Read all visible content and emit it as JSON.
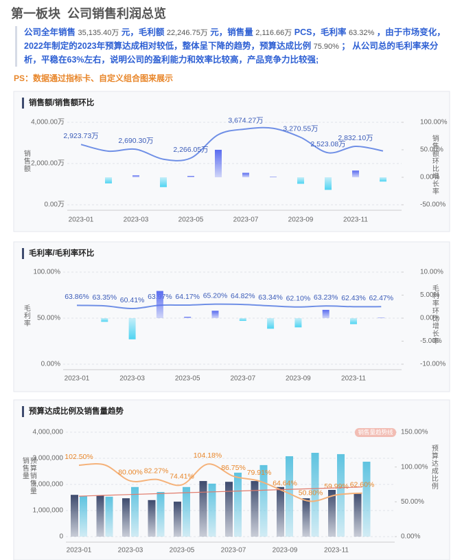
{
  "header": {
    "title": "第一板块  公司销售利润总览"
  },
  "summary": [
    "公司全年销售 ",
    "35,135.40万",
    " 元，毛利额 ",
    "22,246.75万",
    " 元，销售量 ",
    "2,116.66万",
    " PCS，毛利率 ",
    "63.32%",
    " ，由于市场变化，2022年制定的2023年预算达成相对较低，整体呈下降的趋势，预算达成比例 ",
    "75.90%",
    " ； 从公司总的毛利率来分析，平稳在63%左右，说明公司的盈利能力和效率比较高，产品竞争力比较强;"
  ],
  "ps": "PS：数据通过指标卡、自定义组合图来展示",
  "chart_data": [
    {
      "type": "combo",
      "title": "销售额/销售额环比",
      "categories": [
        "2023-01",
        null,
        "2023-03",
        null,
        "2023-05",
        null,
        "2023-07",
        null,
        "2023-09",
        null,
        "2023-11",
        null
      ],
      "ylabel": "销售额",
      "y2label": "销售额环比增长率",
      "ylim": [
        0,
        4000
      ],
      "yticks": [
        {
          "value": 0,
          "label": "0.00万"
        },
        {
          "value": 2000,
          "label": "2,000.00万"
        },
        {
          "value": 4000,
          "label": "4,000.00万"
        }
      ],
      "y2lim": [
        -50,
        100
      ],
      "y2ticks": [
        {
          "value": -50,
          "label": "-50.00%"
        },
        {
          "value": 0,
          "label": "0.00%"
        },
        {
          "value": 50,
          "label": "50.00%"
        },
        {
          "value": 100,
          "label": "100.00%"
        }
      ],
      "grid": true,
      "series": [
        {
          "type": "line",
          "color": "#6f8fe6",
          "label_color": "#3a5bb8",
          "values": [
            2923.73,
            2600,
            2690.3,
            2210,
            2266.05,
            3400,
            3674.27,
            3710,
            3270.55,
            2523.08,
            2832.1,
            2610
          ],
          "value_labels": [
            "2,923.73万",
            null,
            "2,690.30万",
            null,
            "2,266.05万",
            null,
            "3,674.27万",
            null,
            "3,270.55万",
            "2,523.08万",
            "2,832.10万",
            null
          ]
        },
        {
          "type": "bar",
          "axis": "y2",
          "color": "#5a6cf0",
          "neg_color": "#4fd4f2",
          "values": [
            0,
            -11.1,
            3.5,
            -17.9,
            2.5,
            50,
            8.1,
            1,
            -11.8,
            -22.9,
            12.2,
            -7.8
          ]
        }
      ]
    },
    {
      "type": "combo",
      "title": "毛利率/毛利率环比",
      "categories": [
        "2023-01",
        null,
        "2023-03",
        null,
        "2023-05",
        null,
        "2023-07",
        null,
        "2023-09",
        null,
        "2023-11",
        null
      ],
      "ylabel": "毛利率",
      "y2label": "毛利率环比增长率",
      "ylim": [
        0,
        100
      ],
      "yticks": [
        {
          "value": 0,
          "label": "0.00%"
        },
        {
          "value": 50,
          "label": "50.00%"
        },
        {
          "value": 100,
          "label": "100.00%"
        }
      ],
      "y2lim": [
        -10,
        10
      ],
      "y2ticks": [
        {
          "value": -10,
          "label": "-10.00%"
        },
        {
          "value": -5,
          "label": "-5.00%"
        },
        {
          "value": 0,
          "label": "0.00%"
        },
        {
          "value": 5,
          "label": "5.00%"
        },
        {
          "value": 10,
          "label": "10.00%"
        }
      ],
      "grid": true,
      "series": [
        {
          "type": "line",
          "color": "#6f8fe6",
          "label_color": "#3a5bb8",
          "values": [
            63.86,
            63.35,
            60.41,
            63.97,
            64.17,
            65.2,
            64.82,
            63.34,
            62.1,
            63.23,
            62.43,
            62.47
          ],
          "value_labels": [
            "63.86%",
            "63.35%",
            "60.41%",
            "63.97%",
            "64.17%",
            "65.20%",
            "64.82%",
            "63.34%",
            "62.10%",
            "63.23%",
            "62.43%",
            "62.47%"
          ]
        },
        {
          "type": "bar",
          "axis": "y2",
          "color": "#5a6cf0",
          "neg_color": "#4fd4f2",
          "values": [
            0,
            -0.8,
            -4.6,
            5.9,
            0.3,
            1.6,
            -0.6,
            -2.3,
            -2.0,
            1.8,
            -1.3,
            0.1
          ]
        }
      ]
    },
    {
      "type": "combo",
      "title": "预算达成比例及销售量趋势",
      "categories": [
        "2023-01",
        null,
        "2023-03",
        null,
        "2023-05",
        null,
        "2023-07",
        null,
        "2023-09",
        null,
        "2023-11",
        null
      ],
      "ylabel": [
        "销售量",
        "预算销售量"
      ],
      "y2label": "预算达成比例",
      "ylim": [
        0,
        4000000
      ],
      "yticks": [
        0,
        {
          "value": 1000000,
          "label": "1,000,000"
        },
        {
          "value": 2000000,
          "label": "2,000,000"
        },
        {
          "value": 3000000,
          "label": "3,000,000"
        },
        {
          "value": 4000000,
          "label": "4,000,000"
        }
      ],
      "y2lim": [
        0,
        150
      ],
      "y2ticks": [
        {
          "value": 0,
          "label": "0.00%"
        },
        {
          "value": 50,
          "label": "50.00%"
        },
        {
          "value": 100,
          "label": "100.00%"
        },
        {
          "value": 150,
          "label": "150.00%"
        }
      ],
      "grid": true,
      "series": [
        {
          "type": "bar",
          "color": "#3e4b6e",
          "values": [
            1600000,
            1580000,
            1470000,
            1400000,
            1340000,
            2130000,
            2100000,
            2130000,
            1900000,
            1470000,
            1790000,
            1680000
          ]
        },
        {
          "type": "bar",
          "color": "#5ec3e0",
          "values": [
            1550000,
            1530000,
            1900000,
            1710000,
            1900000,
            2030000,
            2450000,
            2740000,
            3080000,
            3210000,
            3160000,
            2870000
          ]
        },
        {
          "type": "line",
          "axis": "y2",
          "color": "#f5b27a",
          "label_color": "#e8862a",
          "values": [
            102.5,
            103,
            80.0,
            82.27,
            74.41,
            104.18,
            86.75,
            79.91,
            64.64,
            50.8,
            59.99,
            62.6
          ],
          "value_labels": [
            "102.50%",
            null,
            "80.00%",
            "82.27%",
            "74.41%",
            "104.18%",
            "86.75%",
            "79.91%",
            "64.64%",
            "50.80%",
            "59.99%",
            "62.60%"
          ]
        },
        {
          "type": "line",
          "name": "销售量趋势线",
          "color": "#e07a6a",
          "straight": true,
          "values": [
            1550000,
            1582000,
            1614000,
            1645000,
            1677000,
            1709000,
            1741000,
            1773000,
            1805000,
            1836000,
            1868000,
            1900000
          ]
        }
      ]
    }
  ]
}
